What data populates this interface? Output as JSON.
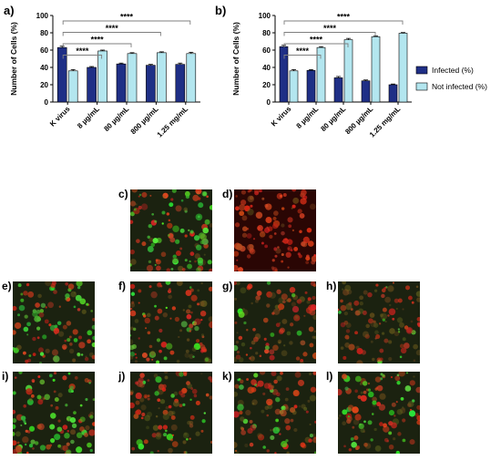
{
  "colors": {
    "infected": "#1f2f86",
    "not_infected": "#b3e6ef",
    "sig_line": "#7f7f7f"
  },
  "legend": {
    "infected": "Infected (%)",
    "not_infected": "Not infected (%)"
  },
  "chart_data": [
    {
      "panel": "a)",
      "type": "bar",
      "ylabel": "Number of Cells (%)",
      "ylim": [
        0,
        100
      ],
      "yticks": [
        "0",
        "20",
        "40",
        "60",
        "80",
        "100"
      ],
      "categories": [
        "K virus",
        "8 µg/mL",
        "80 µg/mL",
        "800 µg/mL",
        "1.25 mg/mL"
      ],
      "series": [
        {
          "name": "Infected (%)",
          "values": [
            63,
            40,
            44,
            42.5,
            43.5
          ],
          "errors": [
            1.5,
            1,
            1,
            1,
            1.5
          ]
        },
        {
          "name": "Not infected (%)",
          "values": [
            36,
            59,
            56,
            57,
            56
          ],
          "errors": [
            1.5,
            1,
            1,
            1,
            1.5
          ]
        }
      ],
      "significance": [
        {
          "from": 0,
          "to": 1,
          "label": "****"
        },
        {
          "from": 0,
          "to": 2,
          "label": "****"
        },
        {
          "from": 0,
          "to": 3,
          "label": "****"
        },
        {
          "from": 0,
          "to": 4,
          "label": "****"
        }
      ]
    },
    {
      "panel": "b)",
      "type": "bar",
      "ylabel": "Number of Cells  (%)",
      "ylim": [
        0,
        100
      ],
      "yticks": [
        "0",
        "20",
        "40",
        "60",
        "80",
        "100"
      ],
      "categories": [
        "K virus",
        "8 µg/mL",
        "80 µg/mL",
        "800 µg/mL",
        "1.25 mg/mL"
      ],
      "series": [
        {
          "name": "Infected (%)",
          "values": [
            64,
            36.5,
            28,
            24.5,
            20
          ],
          "errors": [
            1.5,
            1,
            1.5,
            1,
            0.8
          ]
        },
        {
          "name": "Not infected (%)",
          "values": [
            36,
            63,
            72,
            75.5,
            79.5
          ],
          "errors": [
            1.5,
            1,
            1.5,
            1,
            0.8
          ]
        }
      ],
      "significance": [
        {
          "from": 0,
          "to": 1,
          "label": "****"
        },
        {
          "from": 0,
          "to": 2,
          "label": "****"
        },
        {
          "from": 0,
          "to": 3,
          "label": "****"
        },
        {
          "from": 0,
          "to": 4,
          "label": "****"
        }
      ]
    }
  ],
  "micrographs": [
    {
      "label": "c)",
      "red": 0.35,
      "green": 0.55
    },
    {
      "label": "d)",
      "red": 0.95,
      "green": 0.0
    },
    {
      "label": "e)",
      "red": 0.45,
      "green": 0.45
    },
    {
      "label": "f)",
      "red": 0.6,
      "green": 0.15
    },
    {
      "label": "g)",
      "red": 0.55,
      "green": 0.1
    },
    {
      "label": "h)",
      "red": 0.45,
      "green": 0.1
    },
    {
      "label": "i)",
      "red": 0.45,
      "green": 0.45
    },
    {
      "label": "j)",
      "red": 0.55,
      "green": 0.2
    },
    {
      "label": "k)",
      "red": 0.6,
      "green": 0.15
    },
    {
      "label": "l)",
      "red": 0.55,
      "green": 0.25
    }
  ]
}
